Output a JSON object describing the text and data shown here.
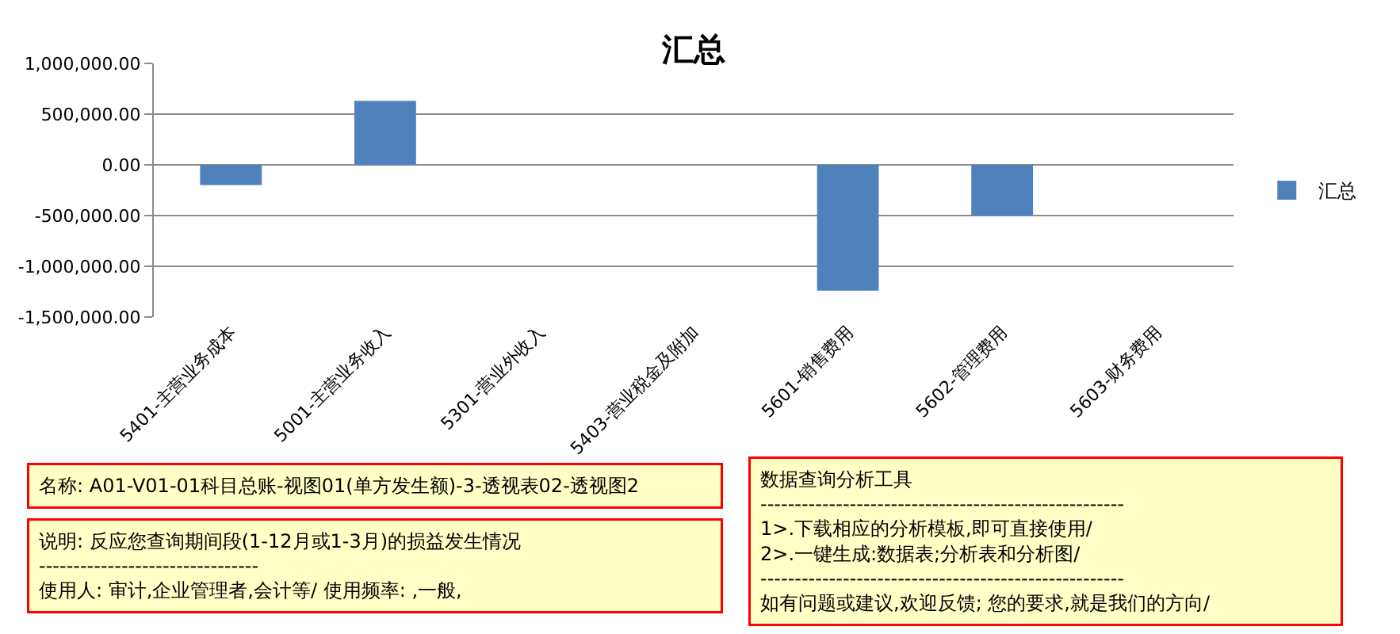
{
  "chart_data": {
    "type": "bar",
    "title": "汇总",
    "categories": [
      "5401-主营业务成本",
      "5001-主营业务收入",
      "5301-营业外收入",
      "5403-营业税金及附加",
      "5601-销售费用",
      "5602-管理费用",
      "5603-财务费用"
    ],
    "series": [
      {
        "name": "汇总",
        "color": "#4f81bd",
        "values": [
          -200000,
          630000,
          0,
          0,
          -1240000,
          -500000,
          0
        ]
      }
    ],
    "ylim": [
      -1500000,
      1000000
    ],
    "yticks": [
      {
        "value": -1500000,
        "label": "-1,500,000.00"
      },
      {
        "value": -1000000,
        "label": "-1,000,000.00"
      },
      {
        "value": -500000,
        "label": "-500,000.00"
      },
      {
        "value": 0,
        "label": "0.00"
      },
      {
        "value": 500000,
        "label": "500,000.00"
      },
      {
        "value": 1000000,
        "label": "1,000,000.00"
      }
    ],
    "grid": "y",
    "legend": "right",
    "annotations": [
      "名称: A01-V01-01科目总账-视图01(单方发生额)-3-透视表02-透视图2",
      "说明: 反应您查询期间段(1-12月或1-3月)的损益发生情况\n--------------------------------\n使用人: 审计,企业管理者,会计等/ 使用频率: ,一般,",
      "数据查询分析工具\n-----------------------------------------------------\n1>.下载相应的分析模板,即可直接使用/\n2>.一键生成:数据表;分析表和分析图/\n-----------------------------------------------------\n如有问题或建议,欢迎反馈; 您的要求,就是我们的方向/"
    ]
  }
}
